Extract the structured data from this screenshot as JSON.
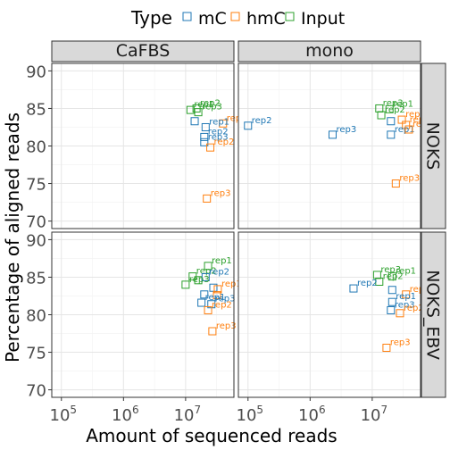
{
  "chart_data": {
    "type": "scatter",
    "xlabel": "Amount of sequenced reads",
    "ylabel": "Percentage of aligned reads",
    "x_scale": "log10",
    "xlim": [
      70000,
      60000000
    ],
    "ylim": [
      69,
      91
    ],
    "x_ticks": [
      {
        "value": 100000,
        "base": "10",
        "exp": "5"
      },
      {
        "value": 1000000,
        "base": "10",
        "exp": "6"
      },
      {
        "value": 10000000,
        "base": "10",
        "exp": "7"
      }
    ],
    "y_ticks": [
      70,
      75,
      80,
      85,
      90
    ],
    "legend": {
      "title": "Type",
      "position": "top",
      "items": [
        {
          "label": "mC",
          "color": "#1f77b4"
        },
        {
          "label": "hmC",
          "color": "#ff7f0e"
        },
        {
          "label": "Input",
          "color": "#2ca02c"
        }
      ]
    },
    "columns": [
      "CaFBS",
      "mono"
    ],
    "rows": [
      "NOKS",
      "NOKS_EBV"
    ],
    "grid": true,
    "points": [
      {
        "col": 0,
        "row": 0,
        "type": 2,
        "label": "rep2",
        "x": 15000000,
        "y": 85.0
      },
      {
        "col": 0,
        "row": 0,
        "type": 2,
        "label": "rep1",
        "x": 12000000,
        "y": 84.8
      },
      {
        "col": 0,
        "row": 0,
        "type": 2,
        "label": "rep3",
        "x": 16000000,
        "y": 84.5
      },
      {
        "col": 0,
        "row": 0,
        "type": 1,
        "label": "rep1",
        "x": 40000000,
        "y": 83.0
      },
      {
        "col": 0,
        "row": 0,
        "type": 0,
        "label": "",
        "x": 14000000,
        "y": 83.3
      },
      {
        "col": 0,
        "row": 0,
        "type": 0,
        "label": "rep1",
        "x": 21000000,
        "y": 82.5
      },
      {
        "col": 0,
        "row": 0,
        "type": 0,
        "label": "rep2",
        "x": 20000000,
        "y": 81.2
      },
      {
        "col": 0,
        "row": 0,
        "type": 0,
        "label": "rep3",
        "x": 20000000,
        "y": 80.5
      },
      {
        "col": 0,
        "row": 0,
        "type": 1,
        "label": "rep2",
        "x": 25000000,
        "y": 79.8
      },
      {
        "col": 0,
        "row": 0,
        "type": 1,
        "label": "rep3",
        "x": 22000000,
        "y": 73.0
      },
      {
        "col": 1,
        "row": 0,
        "type": 2,
        "label": "rep3",
        "x": 13000000,
        "y": 85.0
      },
      {
        "col": 1,
        "row": 0,
        "type": 2,
        "label": "rep1",
        "x": 19000000,
        "y": 84.9
      },
      {
        "col": 1,
        "row": 0,
        "type": 2,
        "label": "rep2",
        "x": 14000000,
        "y": 84.1
      },
      {
        "col": 1,
        "row": 0,
        "type": 1,
        "label": "rep1",
        "x": 30000000,
        "y": 83.5
      },
      {
        "col": 1,
        "row": 0,
        "type": 1,
        "label": "rep3",
        "x": 35000000,
        "y": 82.8
      },
      {
        "col": 1,
        "row": 0,
        "type": 0,
        "label": "",
        "x": 20000000,
        "y": 83.3
      },
      {
        "col": 1,
        "row": 0,
        "type": 0,
        "label": "rep2",
        "x": 100000,
        "y": 82.7
      },
      {
        "col": 1,
        "row": 0,
        "type": 0,
        "label": "rep1",
        "x": 20000000,
        "y": 81.5
      },
      {
        "col": 1,
        "row": 0,
        "type": 1,
        "label": "rep2",
        "x": 39000000,
        "y": 82.2
      },
      {
        "col": 1,
        "row": 0,
        "type": 0,
        "label": "rep3",
        "x": 2300000,
        "y": 81.5
      },
      {
        "col": 1,
        "row": 0,
        "type": 1,
        "label": "rep3",
        "x": 24000000,
        "y": 75.0
      },
      {
        "col": 0,
        "row": 1,
        "type": 2,
        "label": "rep1",
        "x": 23000000,
        "y": 86.5
      },
      {
        "col": 0,
        "row": 1,
        "type": 2,
        "label": "rep2",
        "x": 13000000,
        "y": 85.1
      },
      {
        "col": 0,
        "row": 1,
        "type": 2,
        "label": "",
        "x": 16000000,
        "y": 84.6
      },
      {
        "col": 0,
        "row": 1,
        "type": 0,
        "label": "rep2",
        "x": 21000000,
        "y": 85.0
      },
      {
        "col": 0,
        "row": 1,
        "type": 2,
        "label": "rep3",
        "x": 10000000,
        "y": 84.0
      },
      {
        "col": 0,
        "row": 1,
        "type": 0,
        "label": "",
        "x": 28000000,
        "y": 83.6
      },
      {
        "col": 0,
        "row": 1,
        "type": 1,
        "label": "rep1",
        "x": 33000000,
        "y": 83.4
      },
      {
        "col": 0,
        "row": 1,
        "type": 0,
        "label": "",
        "x": 20000000,
        "y": 82.7
      },
      {
        "col": 0,
        "row": 1,
        "type": 1,
        "label": "",
        "x": 32000000,
        "y": 82.6
      },
      {
        "col": 0,
        "row": 1,
        "type": 0,
        "label": "rep1",
        "x": 18000000,
        "y": 81.6
      },
      {
        "col": 0,
        "row": 1,
        "type": 0,
        "label": "rep3",
        "x": 26000000,
        "y": 81.4
      },
      {
        "col": 0,
        "row": 1,
        "type": 1,
        "label": "rep2",
        "x": 23000000,
        "y": 80.6
      },
      {
        "col": 0,
        "row": 1,
        "type": 1,
        "label": "rep3",
        "x": 27000000,
        "y": 77.8
      },
      {
        "col": 1,
        "row": 1,
        "type": 2,
        "label": "rep3",
        "x": 12000000,
        "y": 85.3
      },
      {
        "col": 1,
        "row": 1,
        "type": 2,
        "label": "rep1",
        "x": 21000000,
        "y": 85.1
      },
      {
        "col": 1,
        "row": 1,
        "type": 2,
        "label": "rep2",
        "x": 13000000,
        "y": 84.4
      },
      {
        "col": 1,
        "row": 1,
        "type": 0,
        "label": "rep2",
        "x": 5000000,
        "y": 83.5
      },
      {
        "col": 1,
        "row": 1,
        "type": 0,
        "label": "",
        "x": 21000000,
        "y": 83.3
      },
      {
        "col": 1,
        "row": 1,
        "type": 1,
        "label": "rep1",
        "x": 35000000,
        "y": 82.7
      },
      {
        "col": 1,
        "row": 1,
        "type": 0,
        "label": "rep1",
        "x": 21000000,
        "y": 81.7
      },
      {
        "col": 1,
        "row": 1,
        "type": 0,
        "label": "rep3",
        "x": 20000000,
        "y": 80.6
      },
      {
        "col": 1,
        "row": 1,
        "type": 1,
        "label": "rep2",
        "x": 28000000,
        "y": 80.2
      },
      {
        "col": 1,
        "row": 1,
        "type": 1,
        "label": "rep3",
        "x": 17000000,
        "y": 75.6
      }
    ]
  }
}
